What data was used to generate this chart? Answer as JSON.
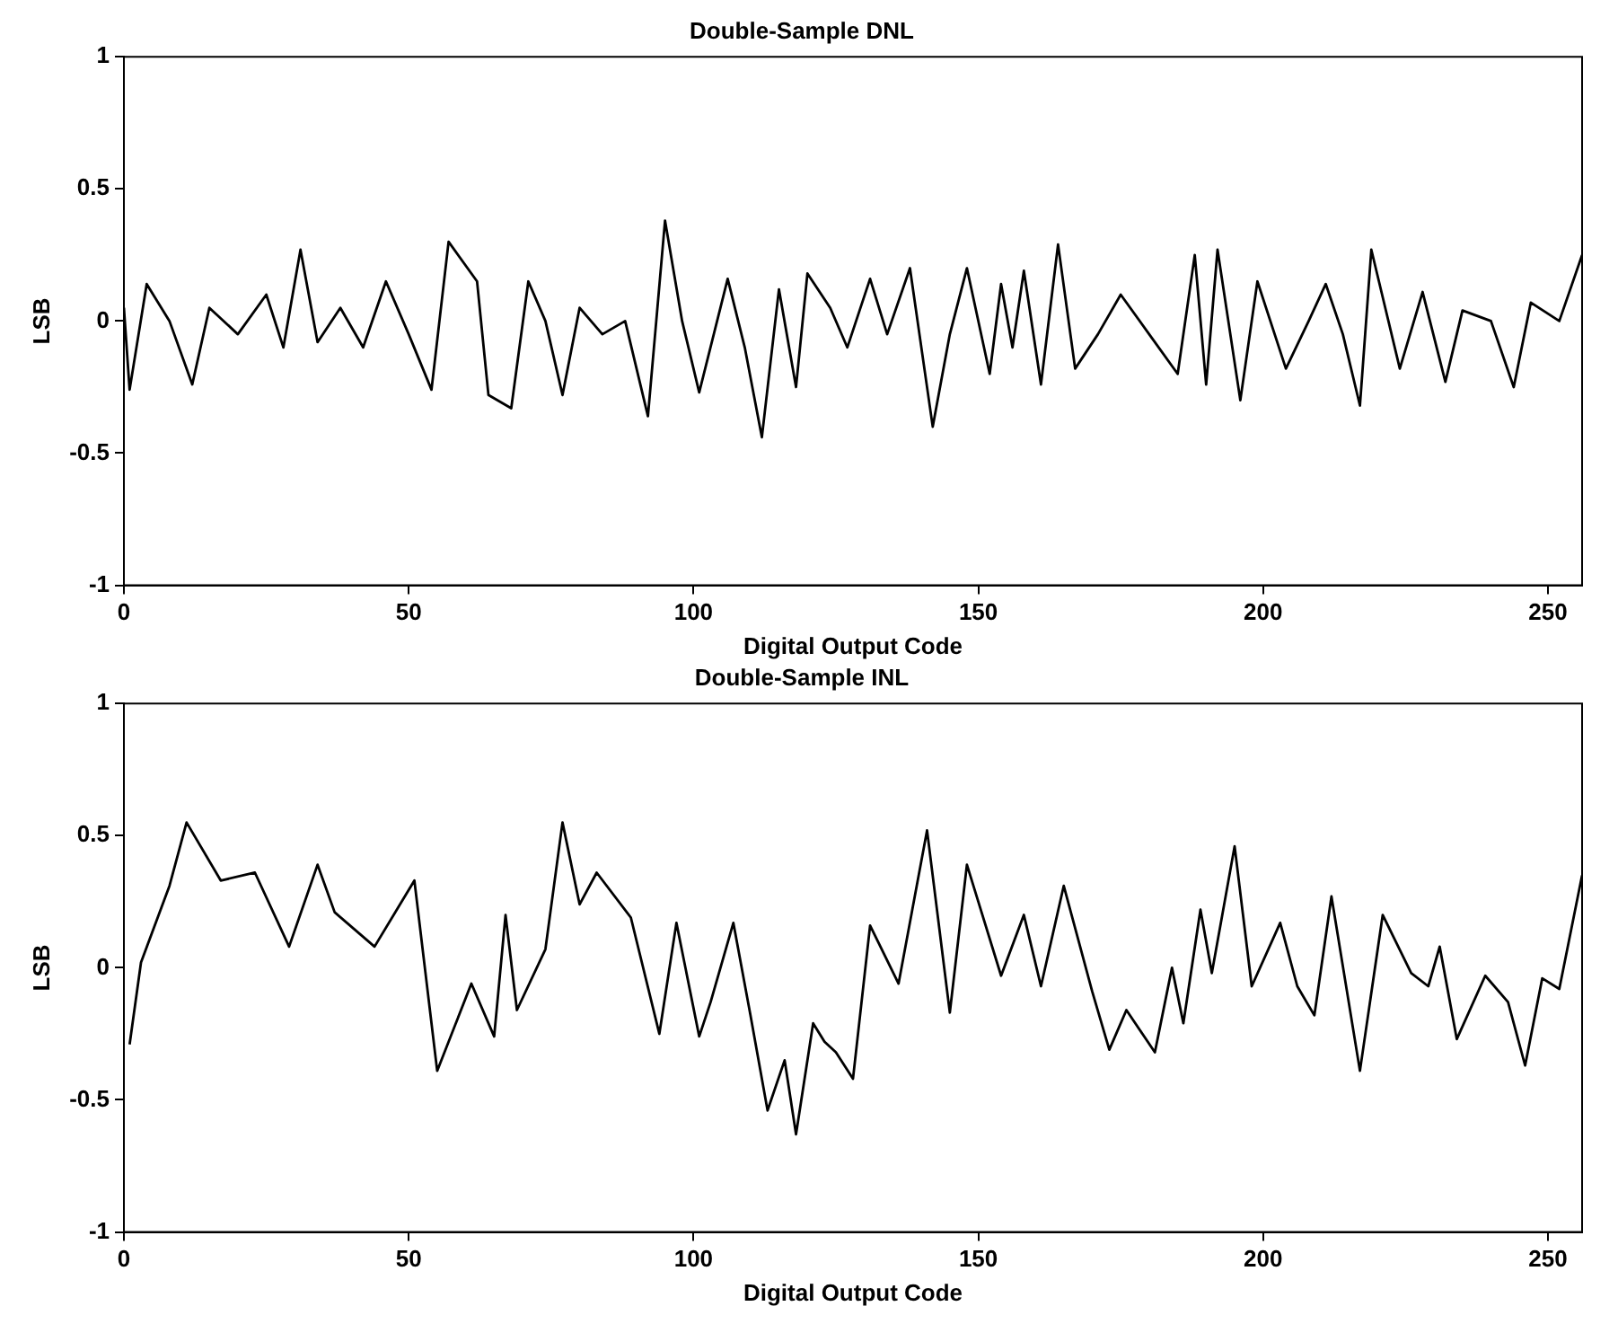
{
  "chart_data": [
    {
      "type": "line",
      "title": "Double-Sample DNL",
      "xlabel": "Digital Output Code",
      "ylabel": "LSB",
      "x": [
        0,
        1,
        4,
        8,
        12,
        15,
        20,
        25,
        28,
        31,
        34,
        38,
        42,
        46,
        50,
        54,
        57,
        62,
        64,
        68,
        71,
        74,
        77,
        80,
        84,
        88,
        92,
        95,
        98,
        101,
        106,
        109,
        112,
        115,
        118,
        120,
        124,
        127,
        131,
        134,
        138,
        142,
        145,
        148,
        152,
        154,
        156,
        158,
        161,
        164,
        167,
        171,
        175,
        180,
        185,
        188,
        190,
        192,
        196,
        199,
        204,
        208,
        211,
        214,
        217,
        219,
        224,
        228,
        232,
        235,
        240,
        244,
        247,
        252,
        256
      ],
      "series": [
        {
          "color": "#000000",
          "values": [
            0.05,
            -0.26,
            0.14,
            0.0,
            -0.24,
            0.05,
            -0.05,
            0.1,
            -0.1,
            0.27,
            -0.08,
            0.05,
            -0.1,
            0.15,
            -0.05,
            -0.26,
            0.3,
            0.15,
            -0.28,
            -0.33,
            0.15,
            0.0,
            -0.28,
            0.05,
            -0.05,
            0.0,
            -0.36,
            0.38,
            0.0,
            -0.27,
            0.16,
            -0.1,
            -0.44,
            0.12,
            -0.25,
            0.18,
            0.05,
            -0.1,
            0.16,
            -0.05,
            0.2,
            -0.4,
            -0.05,
            0.2,
            -0.2,
            0.14,
            -0.1,
            0.19,
            -0.24,
            0.29,
            -0.18,
            -0.05,
            0.1,
            -0.05,
            -0.2,
            0.25,
            -0.24,
            0.27,
            -0.3,
            0.15,
            -0.18,
            0.0,
            0.14,
            -0.05,
            -0.32,
            0.27,
            -0.18,
            0.11,
            -0.23,
            0.04,
            0.0,
            -0.25,
            0.07,
            0.0,
            0.25
          ]
        }
      ],
      "xlim": [
        0,
        256
      ],
      "xticks": [
        0,
        50,
        100,
        150,
        200,
        250
      ],
      "ylim": [
        -1,
        1
      ],
      "yticks": [
        -1,
        -0.5,
        0,
        0.5,
        1
      ],
      "grid": false,
      "legend": false,
      "marker": "none",
      "line_style": "solid"
    },
    {
      "type": "line",
      "title": "Double-Sample INL",
      "xlabel": "Digital Output Code",
      "ylabel": "LSB",
      "x": [
        1,
        3,
        8,
        11,
        17,
        23,
        29,
        34,
        37,
        44,
        51,
        55,
        61,
        65,
        67,
        69,
        74,
        77,
        80,
        83,
        89,
        94,
        97,
        101,
        103,
        107,
        110,
        113,
        116,
        118,
        121,
        123,
        125,
        128,
        131,
        136,
        141,
        145,
        148,
        154,
        158,
        161,
        165,
        170,
        173,
        176,
        181,
        184,
        186,
        189,
        191,
        195,
        198,
        203,
        206,
        209,
        212,
        217,
        221,
        226,
        229,
        231,
        234,
        239,
        243,
        246,
        249,
        252,
        256
      ],
      "series": [
        {
          "color": "#000000",
          "values": [
            -0.29,
            0.02,
            0.31,
            0.55,
            0.33,
            0.36,
            0.08,
            0.39,
            0.21,
            0.08,
            0.33,
            -0.39,
            -0.06,
            -0.26,
            0.2,
            -0.16,
            0.07,
            0.55,
            0.24,
            0.36,
            0.19,
            -0.25,
            0.17,
            -0.26,
            -0.13,
            0.17,
            -0.18,
            -0.54,
            -0.35,
            -0.63,
            -0.21,
            -0.28,
            -0.32,
            -0.42,
            0.16,
            -0.06,
            0.52,
            -0.17,
            0.39,
            -0.03,
            0.2,
            -0.07,
            0.31,
            -0.09,
            -0.31,
            -0.16,
            -0.32,
            0,
            -0.21,
            0.22,
            -0.02,
            0.46,
            -0.07,
            0.17,
            -0.07,
            -0.18,
            0.27,
            -0.39,
            0.2,
            -0.02,
            -0.07,
            0.08,
            -0.27,
            -0.03,
            -0.13,
            -0.37,
            -0.04,
            -0.08,
            0.35
          ]
        }
      ],
      "xlim": [
        0,
        256
      ],
      "xticks": [
        0,
        50,
        100,
        150,
        200,
        250
      ],
      "ylim": [
        -1,
        1
      ],
      "yticks": [
        -1,
        -0.5,
        0,
        0.5,
        1
      ],
      "grid": false,
      "legend": false,
      "marker": "none",
      "line_style": "solid"
    }
  ]
}
